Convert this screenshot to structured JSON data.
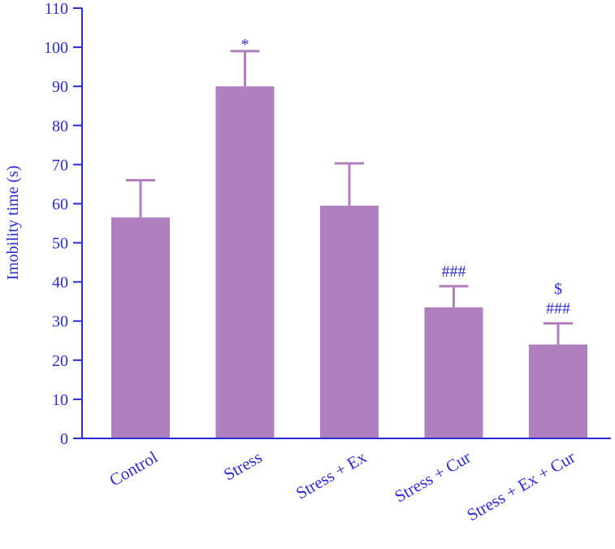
{
  "chart_data": {
    "type": "bar",
    "title": "",
    "xlabel": "",
    "ylabel": "Imobility time (s)",
    "ylim": [
      0,
      110
    ],
    "yticks": [
      0,
      10,
      20,
      30,
      40,
      50,
      60,
      70,
      80,
      90,
      100,
      110
    ],
    "grid": false,
    "legend": "none",
    "categories": [
      "Control",
      "Stress",
      "Stress + Ex",
      "Stress + Cur",
      "Stress + Ex + Cur"
    ],
    "values": [
      56.5,
      90,
      59.5,
      33.5,
      24
    ],
    "errors": [
      9.5,
      9,
      10.8,
      5.4,
      5.4
    ],
    "annotations": [
      [],
      [
        "*"
      ],
      [],
      [
        "###"
      ],
      [
        "$",
        "###"
      ]
    ],
    "colors": {
      "bar": "#b07fc0",
      "axis": "#2b2bd6",
      "text": "#2b2bd6"
    }
  }
}
